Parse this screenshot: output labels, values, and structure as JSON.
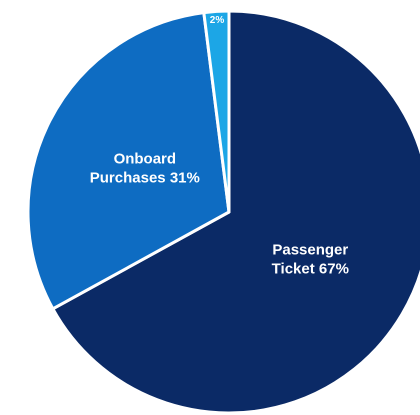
{
  "chart_data": {
    "type": "pie",
    "categories": [
      "Passenger Ticket",
      "Onboard Purchases",
      null
    ],
    "values": [
      67,
      31,
      2
    ],
    "value_labels": [
      "67%",
      "31%",
      "2%"
    ],
    "colors": [
      "#0b2a66",
      "#0e6cc2",
      "#1ca6e6"
    ]
  }
}
